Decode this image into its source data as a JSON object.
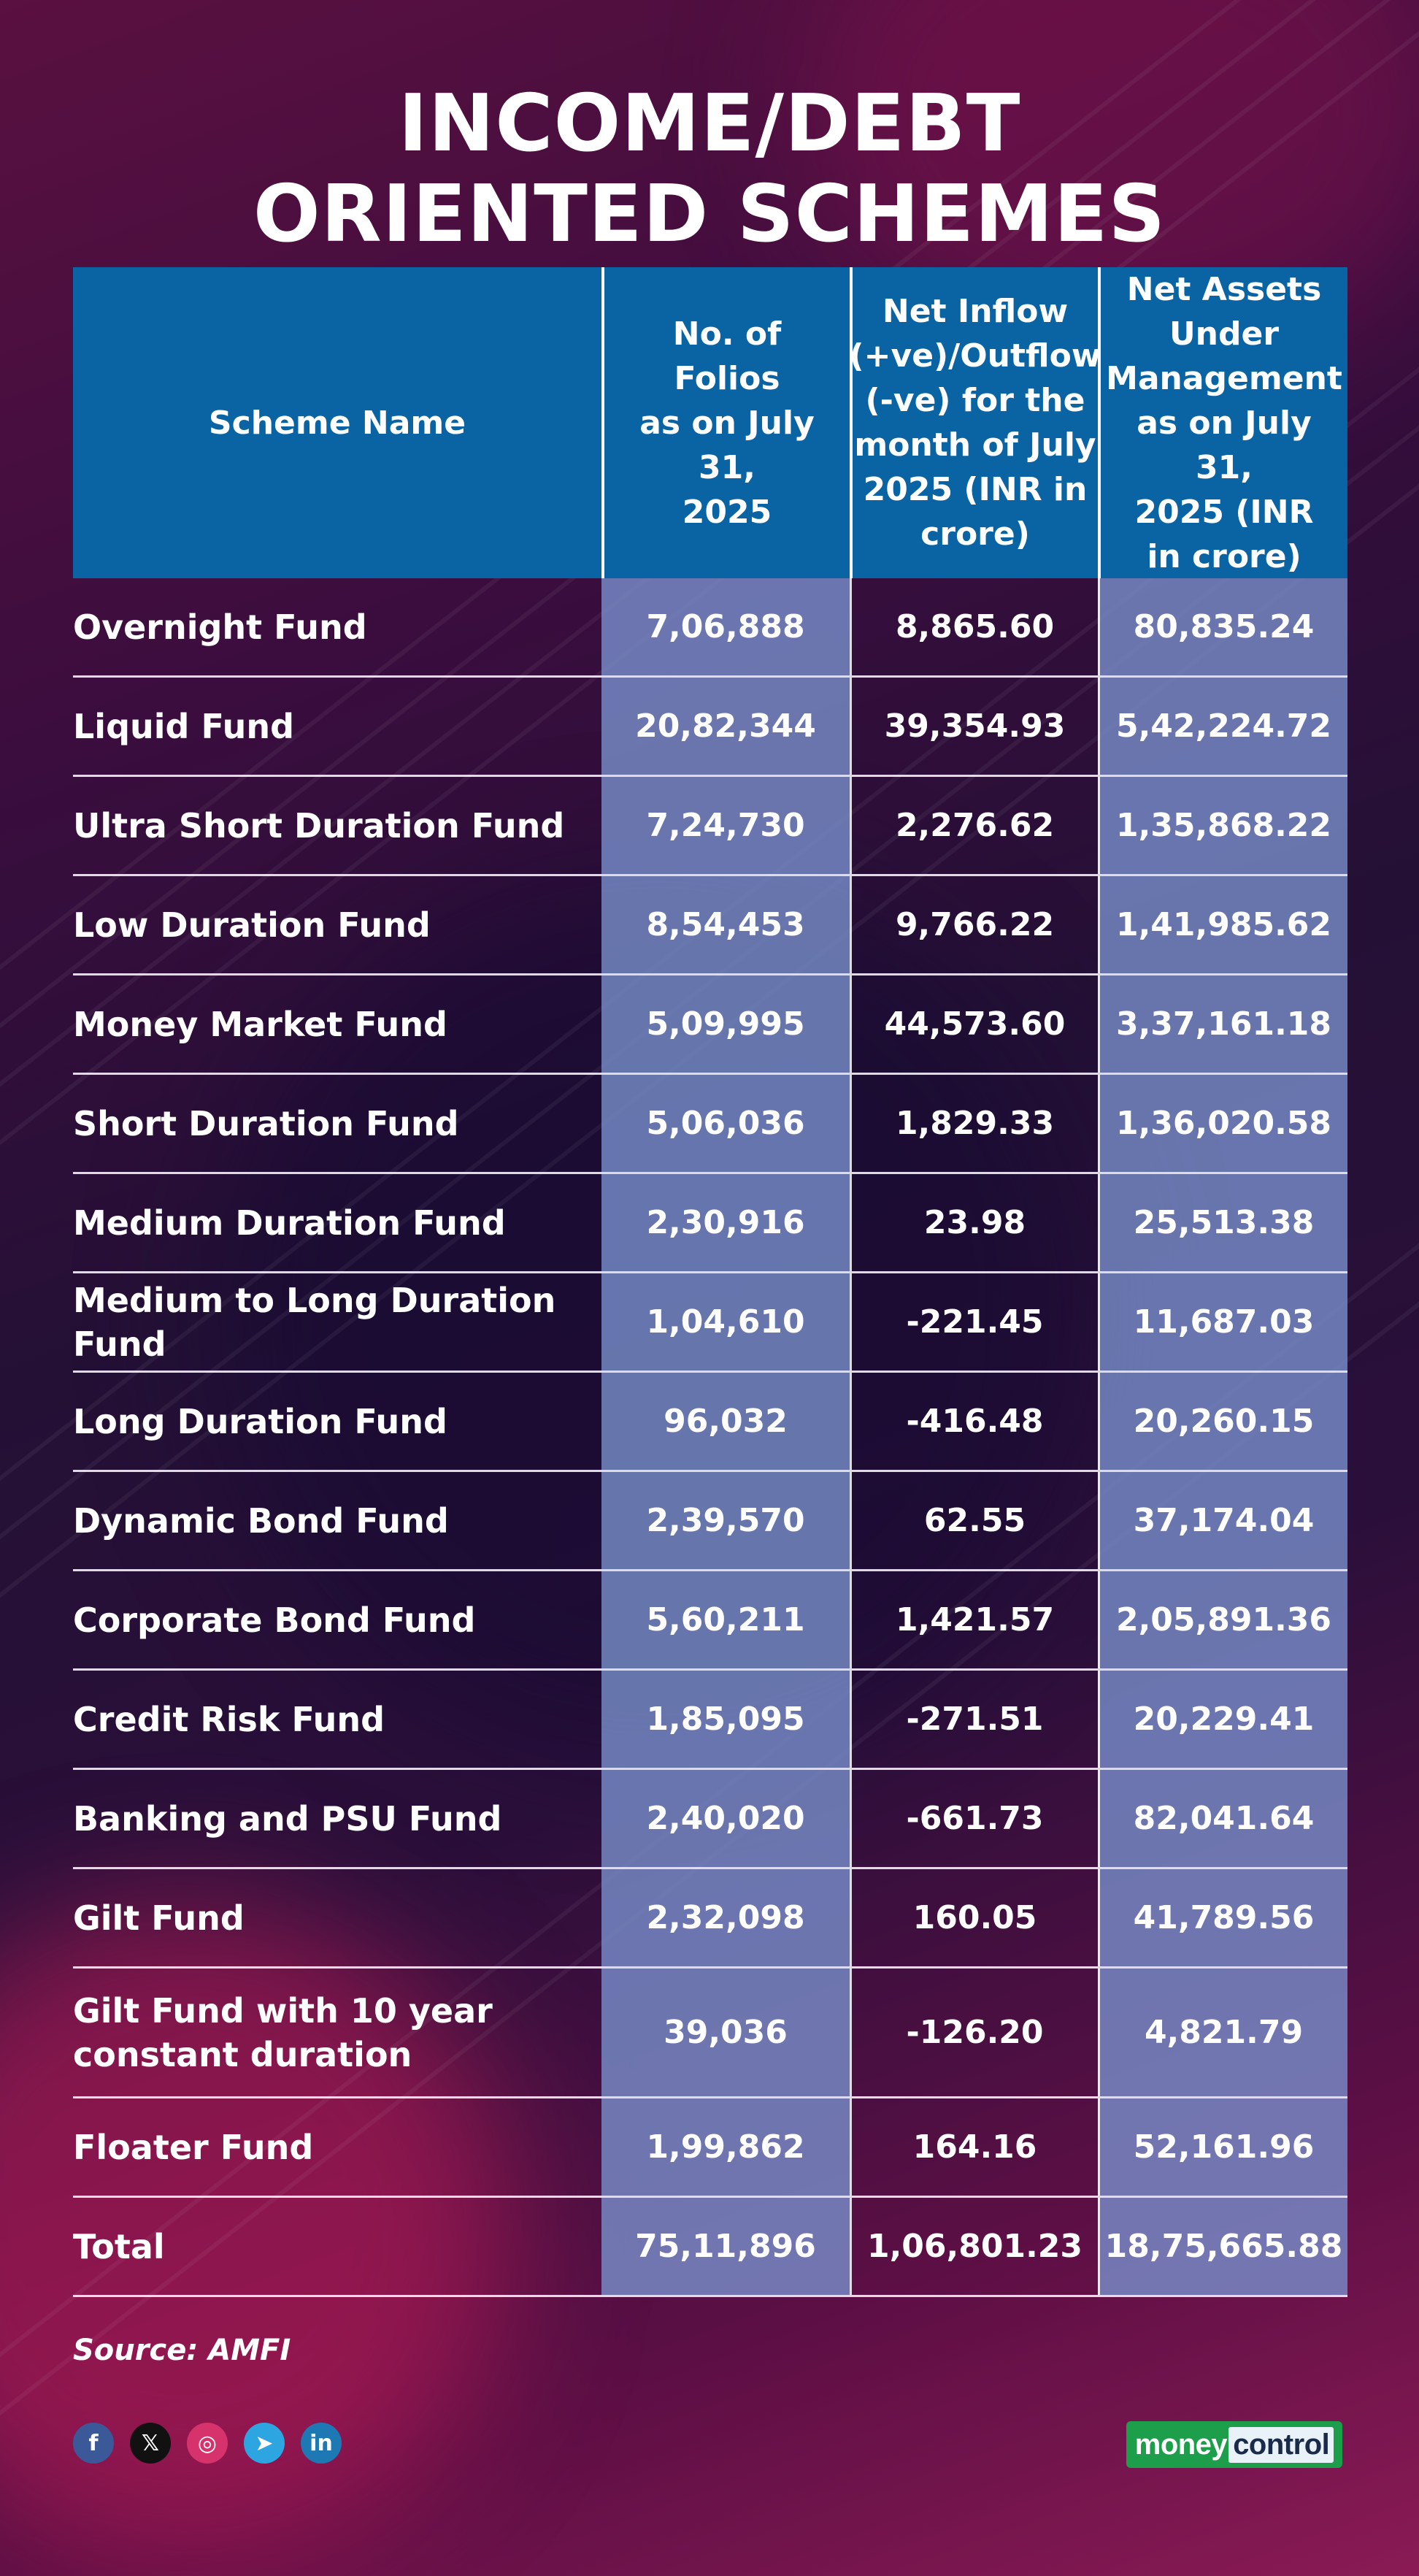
{
  "title": {
    "line1": "INCOME/DEBT",
    "line2": "ORIENTED SCHEMES"
  },
  "chart_data": {
    "type": "table",
    "title": "INCOME/DEBT ORIENTED SCHEMES",
    "columns": [
      "Scheme Name",
      "No. of Folios as on July 31, 2025",
      "Net Inflow (+ve)/Outflow (-ve) for the month of July 2025 (INR in crore)",
      "Net Assets Under Management as on July 31, 2025 (INR in crore)"
    ],
    "header_lines": {
      "scheme": [
        "Scheme Name"
      ],
      "folios": [
        "No. of Folios",
        "as on July 31,",
        "2025"
      ],
      "inflow": [
        "Net Inflow",
        "(+ve)/Outflow",
        "(-ve) for the",
        "month of July",
        "2025 (INR in",
        "crore)"
      ],
      "aum": [
        "Net Assets",
        "Under",
        "Management",
        "as on July 31,",
        "2025 (INR",
        "in crore)"
      ]
    },
    "rows": [
      {
        "name": "Overnight Fund",
        "folios": "7,06,888",
        "inflow": "8,865.60",
        "aum": "80,835.24"
      },
      {
        "name": "Liquid Fund",
        "folios": "20,82,344",
        "inflow": "39,354.93",
        "aum": "5,42,224.72"
      },
      {
        "name": "Ultra Short Duration Fund",
        "folios": "7,24,730",
        "inflow": "2,276.62",
        "aum": "1,35,868.22"
      },
      {
        "name": "Low Duration Fund",
        "folios": "8,54,453",
        "inflow": "9,766.22",
        "aum": "1,41,985.62"
      },
      {
        "name": "Money Market Fund",
        "folios": "5,09,995",
        "inflow": "44,573.60",
        "aum": "3,37,161.18"
      },
      {
        "name": "Short Duration Fund",
        "folios": "5,06,036",
        "inflow": "1,829.33",
        "aum": "1,36,020.58"
      },
      {
        "name": "Medium Duration Fund",
        "folios": "2,30,916",
        "inflow": "23.98",
        "aum": "25,513.38"
      },
      {
        "name": "Medium to Long Duration Fund",
        "folios": "1,04,610",
        "inflow": "-221.45",
        "aum": "11,687.03"
      },
      {
        "name": "Long Duration Fund",
        "folios": "96,032",
        "inflow": "-416.48",
        "aum": "20,260.15"
      },
      {
        "name": "Dynamic Bond Fund",
        "folios": "2,39,570",
        "inflow": "62.55",
        "aum": "37,174.04"
      },
      {
        "name": "Corporate Bond Fund",
        "folios": "5,60,211",
        "inflow": "1,421.57",
        "aum": "2,05,891.36"
      },
      {
        "name": "Credit Risk Fund",
        "folios": "1,85,095",
        "inflow": "-271.51",
        "aum": "20,229.41"
      },
      {
        "name": "Banking and PSU Fund",
        "folios": "2,40,020",
        "inflow": "-661.73",
        "aum": "82,041.64"
      },
      {
        "name": "Gilt Fund",
        "folios": "2,32,098",
        "inflow": "160.05",
        "aum": "41,789.56"
      },
      {
        "name": "Gilt Fund with 10 year constant duration",
        "folios": "39,036",
        "inflow": "-126.20",
        "aum": "4,821.79"
      },
      {
        "name": "Floater Fund",
        "folios": "1,99,862",
        "inflow": "164.16",
        "aum": "52,161.96"
      },
      {
        "name": "Total",
        "folios": "75,11,896",
        "inflow": "1,06,801.23",
        "aum": "18,75,665.88"
      }
    ]
  },
  "source": "Source: AMFI",
  "social": [
    {
      "icon": "facebook-icon",
      "glyph": "f",
      "color": "#3b5998"
    },
    {
      "icon": "x-icon",
      "glyph": "𝕏",
      "color": "#111111"
    },
    {
      "icon": "instagram-icon",
      "glyph": "◎",
      "color": "#d6336c"
    },
    {
      "icon": "telegram-icon",
      "glyph": "➤",
      "color": "#2ca5e0"
    },
    {
      "icon": "linkedin-icon",
      "glyph": "in",
      "color": "#1e78b4"
    }
  ],
  "brand": {
    "part1": "money",
    "part2": "control"
  }
}
